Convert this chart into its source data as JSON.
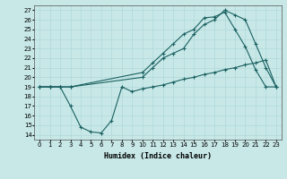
{
  "xlabel": "Humidex (Indice chaleur)",
  "bg_color": "#c8e8e8",
  "grid_color": "#b0d8d8",
  "line_color": "#1a6060",
  "xlim": [
    -0.5,
    23.5
  ],
  "ylim": [
    13.5,
    27.5
  ],
  "xticks": [
    0,
    1,
    2,
    3,
    4,
    5,
    6,
    7,
    8,
    9,
    10,
    11,
    12,
    13,
    14,
    15,
    16,
    17,
    18,
    19,
    20,
    21,
    22,
    23
  ],
  "yticks": [
    14,
    15,
    16,
    17,
    18,
    19,
    20,
    21,
    22,
    23,
    24,
    25,
    26,
    27
  ],
  "line_low_x": [
    0,
    1,
    2,
    3,
    4,
    5,
    6,
    7,
    8,
    9,
    10,
    11,
    12,
    13,
    14,
    15,
    16,
    17,
    18,
    19,
    20,
    21,
    22,
    23
  ],
  "line_low_y": [
    19,
    19,
    19,
    17,
    14.8,
    14.3,
    14.2,
    15.5,
    19,
    18.5,
    18.8,
    19,
    19.2,
    19.5,
    19.8,
    20,
    20.3,
    20.5,
    20.8,
    21,
    21.3,
    21.5,
    21.8,
    19
  ],
  "line_mid_x": [
    0,
    1,
    2,
    3,
    10,
    11,
    12,
    13,
    14,
    15,
    16,
    17,
    18,
    19,
    20,
    21,
    22,
    23
  ],
  "line_mid_y": [
    19,
    19,
    19,
    19,
    20.5,
    21.5,
    22.5,
    23.5,
    24.5,
    25,
    26.2,
    26.3,
    26.8,
    25,
    23.2,
    20.8,
    19,
    19
  ],
  "line_top_x": [
    0,
    1,
    2,
    3,
    10,
    11,
    12,
    13,
    14,
    15,
    16,
    17,
    18,
    19,
    20,
    21,
    22,
    23
  ],
  "line_top_y": [
    19,
    19,
    19,
    19,
    20,
    21,
    22,
    22.5,
    23,
    24.5,
    25.5,
    26,
    27,
    26.5,
    26,
    23.5,
    21,
    19
  ]
}
